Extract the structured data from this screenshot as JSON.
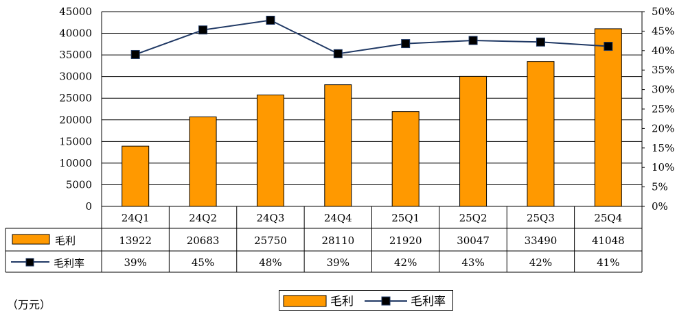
{
  "chart_data": {
    "type": "bar+line",
    "categories": [
      "24Q1",
      "24Q2",
      "24Q3",
      "24Q4",
      "25Q1",
      "25Q2",
      "25Q3",
      "25Q4"
    ],
    "series": [
      {
        "name": "毛利",
        "type": "bar",
        "axis": "left",
        "values": [
          13922,
          20683,
          25750,
          28110,
          21920,
          30047,
          33490,
          41048
        ],
        "labels": [
          "13922",
          "20683",
          "25750",
          "28110",
          "21920",
          "30047",
          "33490",
          "41048"
        ],
        "color": "#FF9900"
      },
      {
        "name": "毛利率",
        "type": "line",
        "axis": "right",
        "values": [
          39,
          45,
          48,
          39,
          42,
          43,
          42,
          41
        ],
        "plotted_values": [
          39.0,
          45.3,
          47.8,
          39.2,
          41.8,
          42.6,
          42.2,
          41.1
        ],
        "labels": [
          "39%",
          "45%",
          "48%",
          "39%",
          "42%",
          "43%",
          "42%",
          "41%"
        ],
        "color": "#1F3864",
        "marker_color": "#000000"
      }
    ],
    "ylim_left": [
      0,
      45000
    ],
    "yticks_left": [
      "0",
      "5000",
      "10000",
      "15000",
      "20000",
      "25000",
      "30000",
      "35000",
      "40000",
      "45000"
    ],
    "ylim_right": [
      0,
      50
    ],
    "yticks_right": [
      "0%",
      "5%",
      "10%",
      "15%",
      "20%",
      "25%",
      "30%",
      "35%",
      "40%",
      "45%",
      "50%"
    ],
    "grid": "horizontal",
    "unit_note": "（万元）",
    "legend_position": "bottom-center",
    "data_table": true
  }
}
